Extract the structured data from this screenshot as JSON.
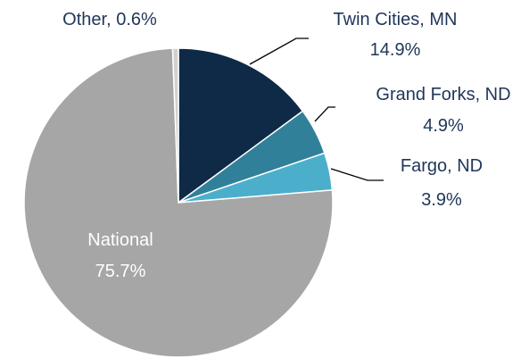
{
  "chart_data": {
    "type": "pie",
    "categories": [
      "Twin Cities, MN",
      "Grand Forks, ND",
      "Fargo, ND",
      "National",
      "Other"
    ],
    "values": [
      14.9,
      4.9,
      3.9,
      75.7,
      0.6
    ],
    "value_labels": [
      "14.9%",
      "4.9%",
      "3.9%",
      "75.7%",
      "0.6%"
    ],
    "colors": [
      "#0e2a47",
      "#31809a",
      "#4bafcc",
      "#a6a6a6",
      "#d0d0d0"
    ]
  }
}
